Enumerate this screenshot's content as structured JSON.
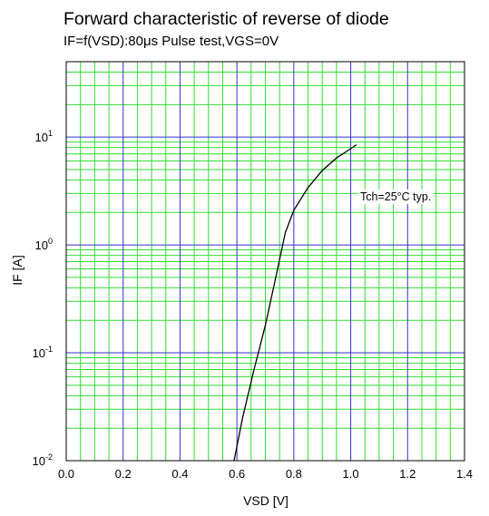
{
  "chart_data": {
    "type": "line",
    "title": "Forward characteristic of reverse of diode",
    "subtitle": "IF=f(VSD):80μs Pulse test,VGS=0V",
    "xlabel": "VSD [V]",
    "ylabel": "IF [A]",
    "x_scale": "linear",
    "y_scale": "log",
    "xlim": [
      0.0,
      1.4
    ],
    "ylim": [
      0.01,
      50
    ],
    "x_tick_labels": [
      "0.0",
      "0.2",
      "0.4",
      "0.6",
      "0.8",
      "1.0",
      "1.2",
      "1.4"
    ],
    "y_tick_labels": [
      {
        "base": "10",
        "exp": "-2"
      },
      {
        "base": "10",
        "exp": "-1"
      },
      {
        "base": "10",
        "exp": "0"
      },
      {
        "base": "10",
        "exp": "1"
      }
    ],
    "grid": true,
    "colors": {
      "major_grid": "#3333cc",
      "minor_grid": "#33dd33",
      "curve": "#000000"
    },
    "annotation": "Tch=25°C typ.",
    "series": [
      {
        "x": [
          0.59,
          0.62,
          0.66,
          0.7,
          0.74,
          0.77,
          0.8,
          0.85,
          0.9,
          0.95,
          1.0,
          1.02
        ],
        "y": [
          0.01,
          0.025,
          0.07,
          0.18,
          0.55,
          1.3,
          2.1,
          3.4,
          4.9,
          6.4,
          7.8,
          8.5
        ]
      }
    ]
  }
}
